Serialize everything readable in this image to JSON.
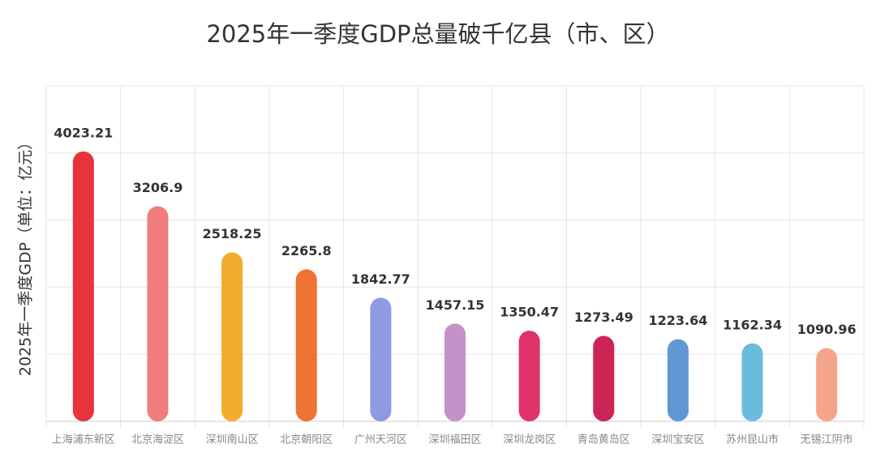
{
  "chart_data": {
    "type": "bar",
    "title": "2025年一季度GDP总量破千亿县（市、区）",
    "y_label": "2025年一季度GDP（单位：亿元）",
    "categories": [
      "上海浦东新区",
      "北京海淀区",
      "深圳南山区",
      "北京朝阳区",
      "广州天河区",
      "深圳福田区",
      "深圳龙岗区",
      "青岛黄岛区",
      "深圳宝安区",
      "苏州昆山市",
      "无锡江阴市"
    ],
    "values": [
      4023.21,
      3206.9,
      2518.25,
      2265.8,
      1842.77,
      1457.15,
      1350.47,
      1273.49,
      1223.64,
      1162.34,
      1090.96
    ],
    "colors": [
      "#e8323c",
      "#f07c7c",
      "#f2ac2c",
      "#ee7334",
      "#8f9be0",
      "#c492c8",
      "#e0336a",
      "#cc2454",
      "#6097d4",
      "#6bbcdc",
      "#f4a489"
    ],
    "ylim": [
      0,
      5000
    ],
    "yticks": [
      0,
      1000,
      2000,
      3000,
      4000,
      5000
    ],
    "grid": true
  }
}
